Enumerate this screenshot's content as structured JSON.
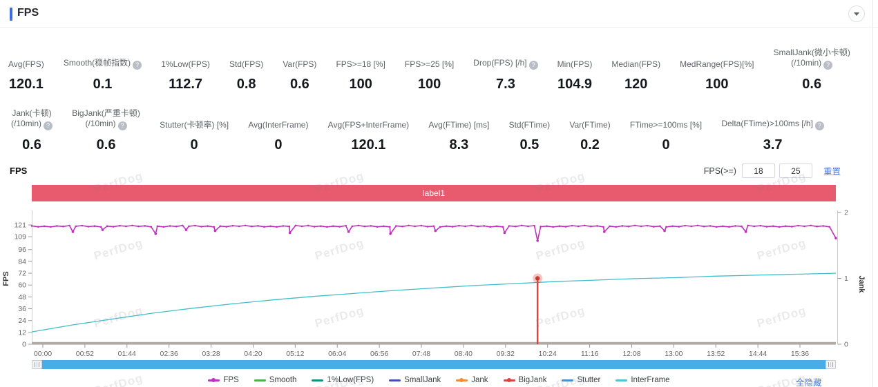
{
  "header": {
    "title": "FPS"
  },
  "icons": {
    "help_glyph": "?"
  },
  "metrics": {
    "row1": [
      {
        "label": "Avg(FPS)",
        "help": false,
        "value": "120.1"
      },
      {
        "label": "Smooth(稳帧指数)",
        "help": true,
        "value": "0.1"
      },
      {
        "label": "1%Low(FPS)",
        "help": false,
        "value": "112.7"
      },
      {
        "label": "Std(FPS)",
        "help": false,
        "value": "0.8"
      },
      {
        "label": "Var(FPS)",
        "help": false,
        "value": "0.6"
      },
      {
        "label": "FPS>=18 [%]",
        "help": false,
        "value": "100"
      },
      {
        "label": "FPS>=25 [%]",
        "help": false,
        "value": "100"
      },
      {
        "label": "Drop(FPS) [/h]",
        "help": true,
        "value": "7.3"
      },
      {
        "label": "Min(FPS)",
        "help": false,
        "value": "104.9"
      },
      {
        "label": "Median(FPS)",
        "help": false,
        "value": "120"
      },
      {
        "label": "MedRange(FPS)[%]",
        "help": false,
        "value": "100"
      },
      {
        "label": "SmallJank(微小卡顿)\n(/10min)",
        "help": true,
        "value": "0.6"
      }
    ],
    "row2": [
      {
        "label": "Jank(卡顿)\n(/10min)",
        "help": true,
        "value": "0.6"
      },
      {
        "label": "BigJank(严重卡顿)\n(/10min)",
        "help": true,
        "value": "0.6"
      },
      {
        "label": "Stutter(卡顿率) [%]",
        "help": false,
        "value": "0"
      },
      {
        "label": "Avg(InterFrame)",
        "help": false,
        "value": "0"
      },
      {
        "label": "Avg(FPS+InterFrame)",
        "help": false,
        "value": "120.1"
      },
      {
        "label": "Avg(FTime) [ms]",
        "help": false,
        "value": "8.3"
      },
      {
        "label": "Std(FTime)",
        "help": false,
        "value": "0.5"
      },
      {
        "label": "Var(FTime)",
        "help": false,
        "value": "0.2"
      },
      {
        "label": "FTime>=100ms [%]",
        "help": false,
        "value": "0"
      },
      {
        "label": "Delta(FTime)>100ms [/h]",
        "help": true,
        "value": "3.7"
      }
    ]
  },
  "chart_controls": {
    "section_title": "FPS",
    "threshold_label": "FPS(>=)",
    "threshold_low": "18",
    "threshold_high": "25",
    "reset_label": "重置"
  },
  "banner": {
    "text": "label1",
    "color": "#e85a6e"
  },
  "chart_data": {
    "type": "line",
    "title": "label1",
    "x_ticks": [
      "00:00",
      "00:52",
      "01:44",
      "02:36",
      "03:28",
      "04:20",
      "05:12",
      "06:04",
      "06:56",
      "07:48",
      "08:40",
      "09:32",
      "10:24",
      "11:16",
      "12:08",
      "13:00",
      "13:52",
      "14:44",
      "15:36"
    ],
    "x_tick_interval_s": 52,
    "y_left": {
      "label": "FPS",
      "ticks": [
        0,
        12,
        24,
        36,
        48,
        60,
        72,
        84,
        96,
        109,
        121
      ],
      "max": 121
    },
    "y_right": {
      "label": "Jank",
      "ticks": [
        0,
        1,
        2
      ],
      "max": 2
    },
    "series": [
      {
        "name": "FPS",
        "color": "#bf30bf",
        "axis": "left",
        "type": "line-with-markers",
        "baseline": 120.1,
        "dips": [
          [
            0.051,
            114
          ],
          [
            0.088,
            116
          ],
          [
            0.154,
            112
          ],
          [
            0.192,
            116
          ],
          [
            0.228,
            115
          ],
          [
            0.321,
            113
          ],
          [
            0.394,
            114
          ],
          [
            0.446,
            112
          ],
          [
            0.502,
            115
          ],
          [
            0.588,
            113
          ],
          [
            0.629,
            105
          ],
          [
            0.712,
            114
          ],
          [
            0.787,
            115
          ],
          [
            0.888,
            114
          ],
          [
            0.997,
            107.5
          ]
        ]
      },
      {
        "name": "InterFrame",
        "color": "#3fbecb",
        "axis": "left",
        "type": "line",
        "points": [
          [
            0,
            12.5
          ],
          [
            0.05,
            19.5
          ],
          [
            0.1,
            25.5
          ],
          [
            0.15,
            31.5
          ],
          [
            0.2,
            36.5
          ],
          [
            0.25,
            41
          ],
          [
            0.3,
            45
          ],
          [
            0.35,
            48.5
          ],
          [
            0.4,
            51.5
          ],
          [
            0.45,
            54.5
          ],
          [
            0.5,
            57
          ],
          [
            0.55,
            59.5
          ],
          [
            0.6,
            61.5
          ],
          [
            0.65,
            63.5
          ],
          [
            0.7,
            65
          ],
          [
            0.75,
            66.5
          ],
          [
            0.8,
            67.5
          ],
          [
            0.85,
            69
          ],
          [
            0.9,
            70
          ],
          [
            0.95,
            71
          ],
          [
            1,
            72
          ]
        ]
      },
      {
        "name": "BigJank",
        "color": "#d8453c",
        "axis": "right",
        "type": "event-spike",
        "events": [
          [
            0.629,
            1
          ]
        ]
      },
      {
        "name": "Smooth",
        "color": "#4caf50",
        "axis": "left",
        "type": "flat",
        "value": 0
      },
      {
        "name": "SmallJank",
        "color": "#3f51b5",
        "axis": "right",
        "type": "flat",
        "value": 0
      },
      {
        "name": "Jank",
        "color": "#f08c3a",
        "axis": "right",
        "type": "flat",
        "value": 0
      },
      {
        "name": "Stutter",
        "color": "#4a90d9",
        "axis": "right",
        "type": "flat",
        "value": 0
      },
      {
        "name": "1%Low(FPS)",
        "color": "#12917f",
        "axis": "left",
        "type": "hidden",
        "value": 112.7
      }
    ],
    "baseline_color": "#b3aca6",
    "axis_color": "#cccccc",
    "tick_color": "#999999",
    "label_color": "#666666"
  },
  "legend": {
    "hide_all": "全隐藏",
    "items": [
      {
        "label": "FPS",
        "color": "#bf30bf",
        "dot": true
      },
      {
        "label": "Smooth",
        "color": "#4caf50",
        "dot": false
      },
      {
        "label": "1%Low(FPS)",
        "color": "#12917f",
        "dot": false
      },
      {
        "label": "SmallJank",
        "color": "#3f51b5",
        "dot": false
      },
      {
        "label": "Jank",
        "color": "#f08c3a",
        "dot": true
      },
      {
        "label": "BigJank",
        "color": "#d8453c",
        "dot": true
      },
      {
        "label": "Stutter",
        "color": "#4a90d9",
        "dot": false
      },
      {
        "label": "InterFrame",
        "color": "#4ec3d4",
        "dot": false
      }
    ]
  },
  "watermark": {
    "text": "PerfDog"
  }
}
